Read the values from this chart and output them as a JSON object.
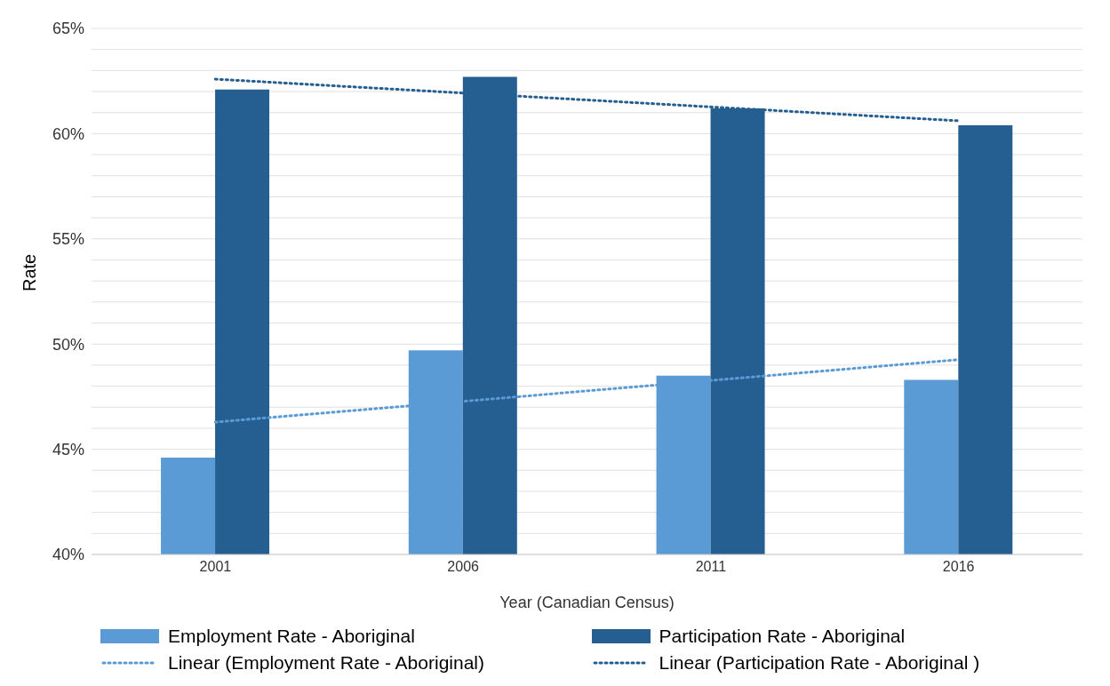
{
  "chart_data": {
    "type": "bar",
    "xlabel": "Year (Canadian Census)",
    "ylabel": "Rate",
    "categories": [
      "2001",
      "2006",
      "2011",
      "2016"
    ],
    "series": [
      {
        "name": "Employment Rate - Aboriginal",
        "color": "#5b9bd5",
        "values": [
          44.6,
          49.7,
          48.5,
          48.3
        ]
      },
      {
        "name": "Participation Rate - Aboriginal",
        "color": "#255e91",
        "values": [
          62.1,
          62.7,
          61.2,
          60.4
        ]
      },
      {
        "name": "Linear (Employment Rate - Aboriginal)",
        "type": "line",
        "line_style": "dotted",
        "color": "#5b9bd5",
        "values": [
          46.29,
          47.28,
          48.27,
          49.26
        ]
      },
      {
        "name": "Linear (Participation Rate - Aboriginal )",
        "type": "line",
        "line_style": "dotted",
        "color": "#255e91",
        "values": [
          62.59,
          61.93,
          61.27,
          60.61
        ]
      }
    ],
    "ylim": [
      40,
      65
    ],
    "yticks": [
      {
        "value": 40,
        "label": "40%"
      },
      {
        "value": 41,
        "label": null
      },
      {
        "value": 42,
        "label": null
      },
      {
        "value": 43,
        "label": null
      },
      {
        "value": 44,
        "label": null
      },
      {
        "value": 45,
        "label": "45%"
      },
      {
        "value": 46,
        "label": null
      },
      {
        "value": 47,
        "label": null
      },
      {
        "value": 48,
        "label": null
      },
      {
        "value": 49,
        "label": null
      },
      {
        "value": 50,
        "label": "50%"
      },
      {
        "value": 51,
        "label": null
      },
      {
        "value": 52,
        "label": null
      },
      {
        "value": 53,
        "label": null
      },
      {
        "value": 54,
        "label": null
      },
      {
        "value": 55,
        "label": "55%"
      },
      {
        "value": 56,
        "label": null
      },
      {
        "value": 57,
        "label": null
      },
      {
        "value": 58,
        "label": null
      },
      {
        "value": 59,
        "label": null
      },
      {
        "value": 60,
        "label": "60%"
      },
      {
        "value": 61,
        "label": null
      },
      {
        "value": 62,
        "label": null
      },
      {
        "value": 63,
        "label": null
      },
      {
        "value": 64,
        "label": null
      },
      {
        "value": 65,
        "label": "65%"
      }
    ],
    "grid": "y",
    "legend": "bottom",
    "marker": "none"
  }
}
